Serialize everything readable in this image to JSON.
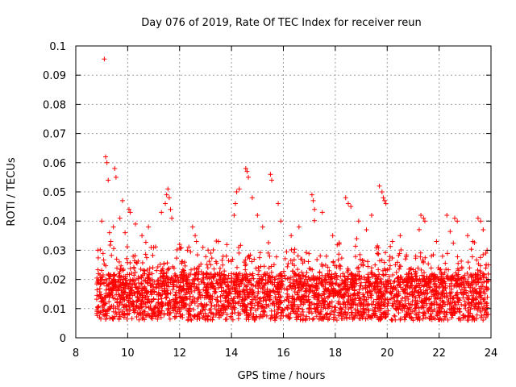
{
  "chart_data": {
    "type": "scatter",
    "title": "Day 076 of 2019, Rate Of TEC Index for receiver reun",
    "xlabel": "GPS time / hours",
    "ylabel": "ROTI / TECUs",
    "xlim": [
      8,
      24
    ],
    "ylim": [
      0,
      0.1
    ],
    "x_ticks": [
      8,
      10,
      12,
      14,
      16,
      18,
      20,
      22,
      24
    ],
    "x_tick_labels": [
      "8",
      "10",
      "12",
      "14",
      "16",
      "18",
      "20",
      "22",
      "24"
    ],
    "y_ticks": [
      0,
      0.01,
      0.02,
      0.03,
      0.04,
      0.05,
      0.06,
      0.07,
      0.08,
      0.09,
      0.1
    ],
    "y_tick_labels": [
      "0",
      "0.01",
      "0.02",
      "0.03",
      "0.04",
      "0.05",
      "0.06",
      "0.07",
      "0.08",
      "0.09",
      "0.1"
    ],
    "grid": true,
    "marker": "plus",
    "series": [
      {
        "name": "ROTI",
        "color": "#ff0000",
        "x": [
          9.1,
          9.15,
          9.2,
          9.25,
          9.5,
          9.55,
          9.8,
          8.85,
          9.0,
          9.3,
          9.35,
          9.45,
          9.7,
          9.9,
          10.05,
          10.1,
          10.3,
          10.55,
          10.8,
          11.0,
          11.3,
          11.45,
          11.5,
          11.55,
          11.6,
          11.65,
          11.7,
          12.0,
          12.3,
          12.5,
          12.6,
          12.65,
          12.9,
          13.2,
          13.5,
          13.8,
          14.1,
          14.15,
          14.2,
          14.3,
          14.55,
          14.6,
          14.65,
          14.8,
          15.0,
          15.2,
          15.5,
          15.55,
          15.8,
          15.9,
          16.3,
          16.6,
          17.1,
          17.15,
          17.2,
          17.5,
          17.9,
          18.4,
          18.5,
          18.6,
          18.9,
          19.2,
          19.4,
          19.7,
          19.8,
          19.85,
          19.9,
          19.95,
          20.2,
          20.5,
          21.1,
          21.3,
          21.4,
          21.45,
          21.9,
          22.3,
          22.6,
          22.7,
          23.1,
          23.3,
          23.5,
          23.6,
          23.7,
          23.8,
          23.85
        ],
        "y": [
          0.0955,
          0.062,
          0.06,
          0.054,
          0.058,
          0.055,
          0.047,
          0.03,
          0.04,
          0.036,
          0.033,
          0.038,
          0.041,
          0.036,
          0.044,
          0.043,
          0.039,
          0.035,
          0.038,
          0.031,
          0.043,
          0.046,
          0.049,
          0.051,
          0.048,
          0.044,
          0.041,
          0.032,
          0.03,
          0.038,
          0.035,
          0.033,
          0.031,
          0.029,
          0.033,
          0.028,
          0.042,
          0.046,
          0.05,
          0.051,
          0.058,
          0.057,
          0.055,
          0.048,
          0.042,
          0.038,
          0.056,
          0.054,
          0.046,
          0.04,
          0.035,
          0.038,
          0.049,
          0.047,
          0.044,
          0.043,
          0.035,
          0.048,
          0.046,
          0.045,
          0.04,
          0.037,
          0.042,
          0.052,
          0.05,
          0.048,
          0.047,
          0.046,
          0.033,
          0.035,
          0.028,
          0.042,
          0.041,
          0.04,
          0.033,
          0.042,
          0.041,
          0.04,
          0.035,
          0.033,
          0.041,
          0.04,
          0.037,
          0.029,
          0.03
        ]
      }
    ],
    "dense_band": {
      "description": "dense cloud of ROTI values between roughly 0.005 and 0.03 TECUs from 8.8 to 23.9 hours",
      "x_range": [
        8.8,
        23.9
      ],
      "typical_y_range": [
        0.005,
        0.03
      ]
    }
  }
}
